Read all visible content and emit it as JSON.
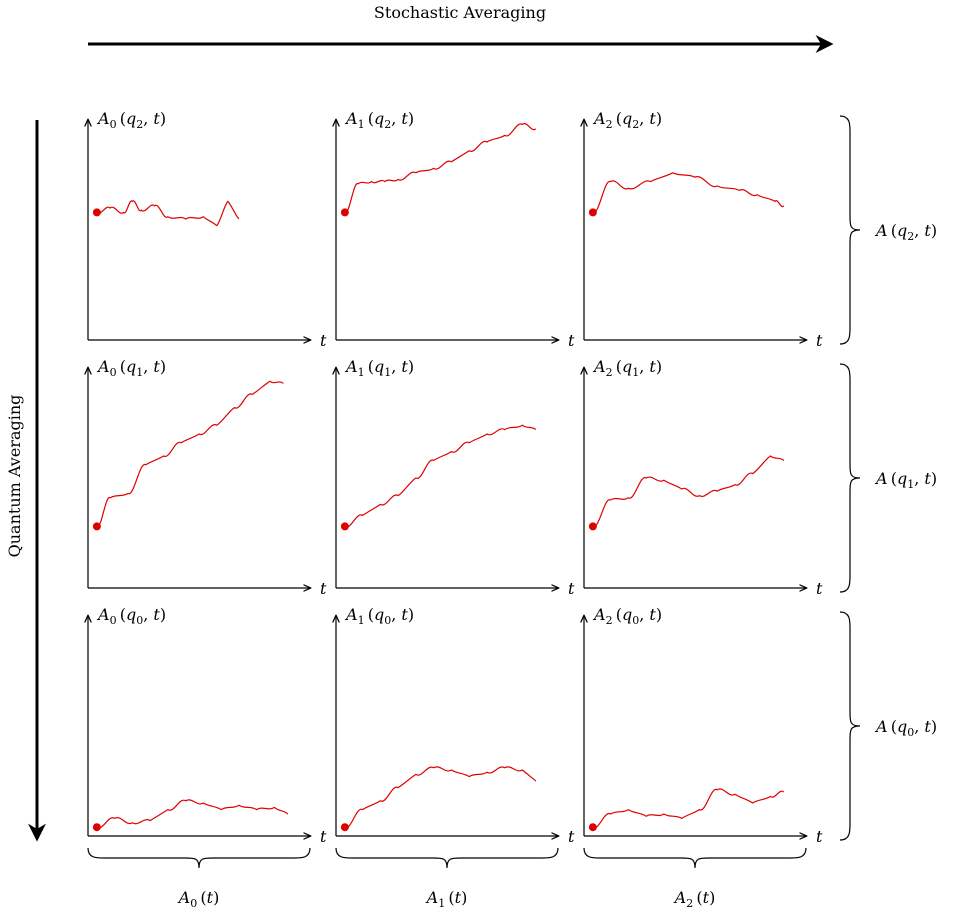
{
  "labels": {
    "top_arrow": "Stochastic Averaging",
    "left_arrow": "Quantum Averaging",
    "t_axis": "t"
  },
  "colors": {
    "curve": "#e00000",
    "axis": "#000000"
  },
  "panels": [
    {
      "row": 0,
      "col": 0,
      "a": "0",
      "q": "2",
      "trend": "flat-low"
    },
    {
      "row": 0,
      "col": 1,
      "a": "1",
      "q": "2",
      "trend": "rising"
    },
    {
      "row": 0,
      "col": 2,
      "a": "2",
      "q": "2",
      "trend": "rise-then-flat"
    },
    {
      "row": 1,
      "col": 0,
      "a": "0",
      "q": "1",
      "trend": "steep-rising"
    },
    {
      "row": 1,
      "col": 1,
      "a": "1",
      "q": "1",
      "trend": "rising"
    },
    {
      "row": 1,
      "col": 2,
      "a": "2",
      "q": "1",
      "trend": "moderate-rising"
    },
    {
      "row": 2,
      "col": 0,
      "a": "0",
      "q": "0",
      "trend": "flat-low"
    },
    {
      "row": 2,
      "col": 1,
      "a": "1",
      "q": "0",
      "trend": "gentle-rising"
    },
    {
      "row": 2,
      "col": 2,
      "a": "2",
      "q": "0",
      "trend": "gentle-rising"
    }
  ],
  "row_labels": [
    {
      "q": "2"
    },
    {
      "q": "1"
    },
    {
      "q": "0"
    }
  ],
  "col_labels": [
    {
      "a": "0"
    },
    {
      "a": "1"
    },
    {
      "a": "2"
    }
  ]
}
